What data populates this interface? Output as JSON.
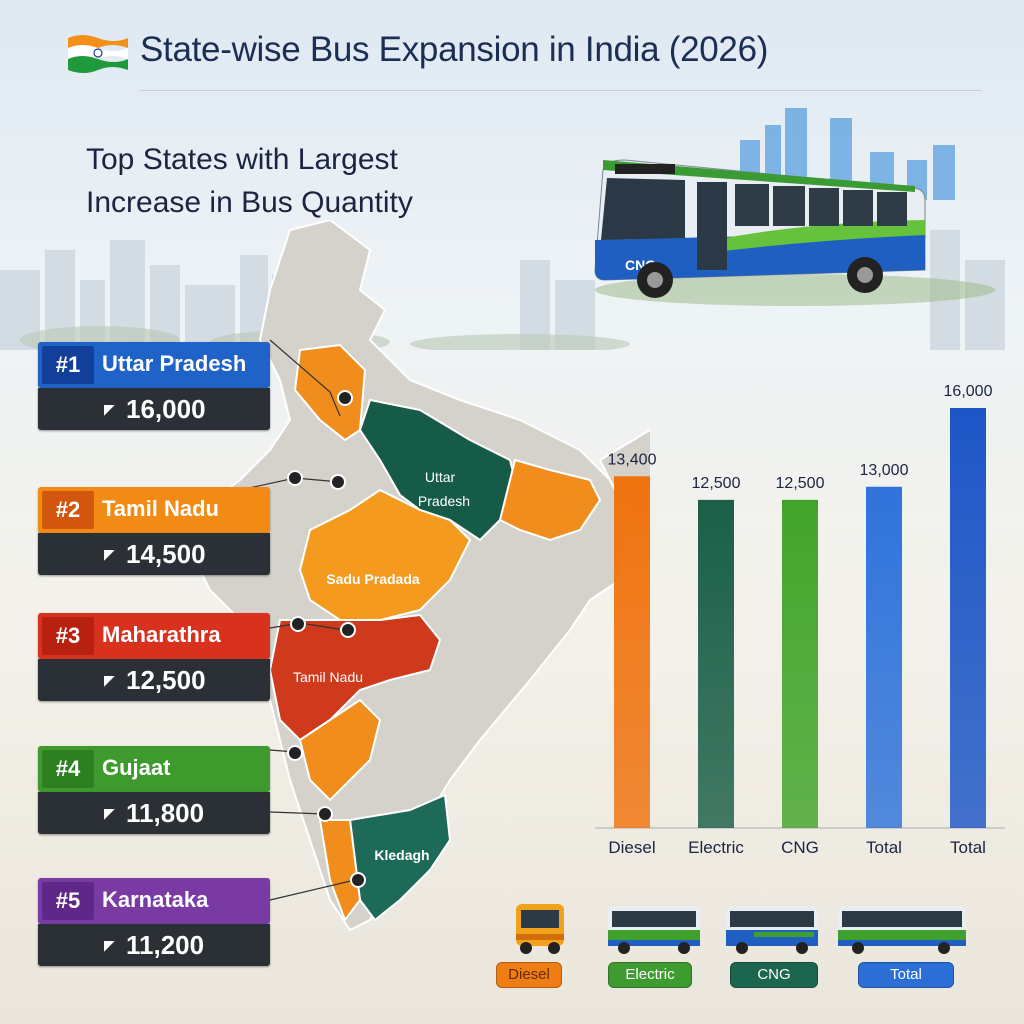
{
  "header": {
    "title": "State-wise Bus Expansion in India (2026)",
    "subtitle_line1": "Top States with Largest",
    "subtitle_line2": "Increase in Bus Quantity"
  },
  "map_labels": {
    "uttar_pradesh": [
      "Uttar",
      "Pradesh"
    ],
    "sadu_pradada": "Sadu Pradada",
    "tamil_nadu": "Tamil Nadu",
    "kledagh": "Kledagh"
  },
  "bus": {
    "plate": "CNG"
  },
  "states": [
    {
      "rank": "#1",
      "name": "Uttar Pradesh",
      "value": "16,000",
      "color": "#1f63c9",
      "rank_color": "#123f9a"
    },
    {
      "rank": "#2",
      "name": "Tamil Nadu",
      "value": "14,500",
      "color": "#f28a16",
      "rank_color": "#d2560d"
    },
    {
      "rank": "#3",
      "name": "Maharathra",
      "value": "12,500",
      "color": "#d8321e",
      "rank_color": "#b8200f"
    },
    {
      "rank": "#4",
      "name": "Gujaat",
      "value": "11,800",
      "color": "#3f9a2d",
      "rank_color": "#2d7f20"
    },
    {
      "rank": "#5",
      "name": "Karnataka",
      "value": "11,200",
      "color": "#7a3aa4",
      "rank_color": "#5f2888"
    }
  ],
  "chart_data": {
    "type": "bar",
    "categories": [
      "Diesel",
      "Electric",
      "CNG",
      "Total",
      "Total"
    ],
    "values": [
      13400,
      12500,
      12500,
      13000,
      16000
    ],
    "value_labels": [
      "13,400",
      "12,500",
      "12,500",
      "13,000",
      "16,000"
    ],
    "colors": [
      "#f0730f",
      "#1b5f48",
      "#42a52a",
      "#2f73db",
      "#1d56c6"
    ],
    "title": "",
    "xlabel": "",
    "ylabel": "",
    "grid": false
  },
  "legend": {
    "items": [
      {
        "label": "Diesel",
        "color": "#ee7d16",
        "text_color": "#6a2a00"
      },
      {
        "label": "Electric",
        "color": "#3e9b2f",
        "text_color": "#ffffff"
      },
      {
        "label": "CNG",
        "color": "#1c6650",
        "text_color": "#ffffff"
      },
      {
        "label": "Total",
        "color": "#2b6fd6",
        "text_color": "#ffffff"
      }
    ]
  }
}
